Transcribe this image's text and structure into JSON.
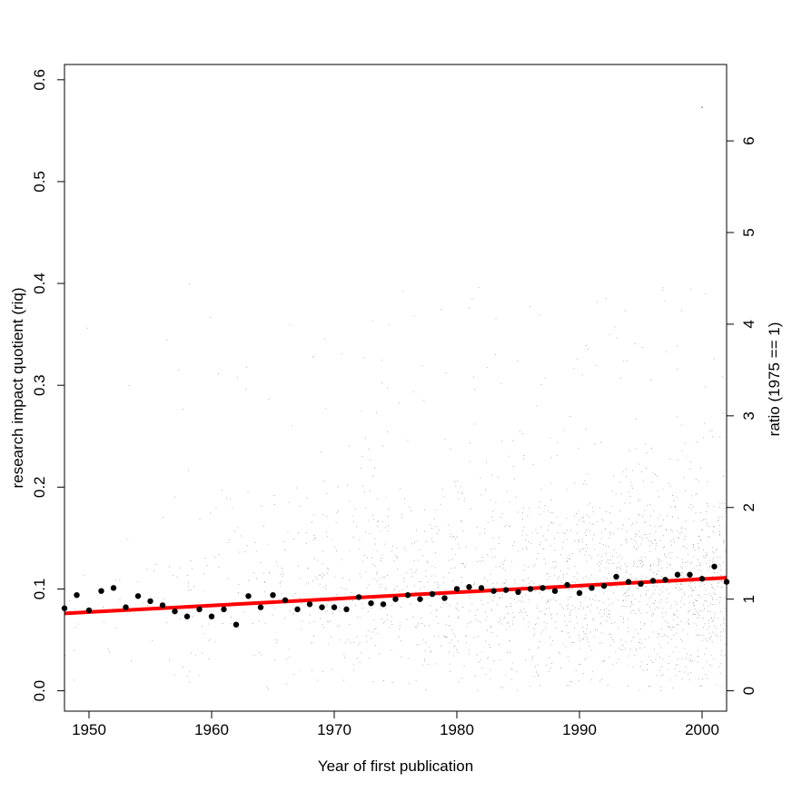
{
  "chart_data": {
    "type": "scatter",
    "title": "",
    "xlabel": "Year of first publication",
    "ylabel": "research impact quotient (riq)",
    "y2label": "ratio (1975 == 1)",
    "xlim": [
      1948,
      2002
    ],
    "ylim": [
      -0.02,
      0.615
    ],
    "y2_reference_riq": 0.09,
    "x_ticks": [
      1950,
      1960,
      1970,
      1980,
      1990,
      2000
    ],
    "y_ticks": [
      0.0,
      0.1,
      0.2,
      0.3,
      0.4,
      0.5,
      0.6
    ],
    "y_tick_labels": [
      "0.0",
      "0.1",
      "0.2",
      "0.3",
      "0.4",
      "0.5",
      "0.6"
    ],
    "y2_ticks": [
      0,
      1,
      2,
      3,
      4,
      5,
      6
    ],
    "y2_tick_labels": [
      "0",
      "1",
      "2",
      "3",
      "4",
      "5",
      "6"
    ],
    "grid": false,
    "series": [
      {
        "kind": "yearly_mean_points",
        "color": "#000000",
        "x": [
          1948,
          1949,
          1950,
          1951,
          1952,
          1953,
          1954,
          1955,
          1956,
          1957,
          1958,
          1959,
          1960,
          1961,
          1962,
          1963,
          1964,
          1965,
          1966,
          1967,
          1968,
          1969,
          1970,
          1971,
          1972,
          1973,
          1974,
          1975,
          1976,
          1977,
          1978,
          1979,
          1980,
          1981,
          1982,
          1983,
          1984,
          1985,
          1986,
          1987,
          1988,
          1989,
          1990,
          1991,
          1992,
          1993,
          1994,
          1995,
          1996,
          1997,
          1998,
          1999,
          2000,
          2001,
          2002
        ],
        "y": [
          0.081,
          0.094,
          0.079,
          0.098,
          0.101,
          0.082,
          0.093,
          0.088,
          0.084,
          0.078,
          0.073,
          0.08,
          0.073,
          0.08,
          0.065,
          0.093,
          0.082,
          0.094,
          0.089,
          0.08,
          0.085,
          0.082,
          0.082,
          0.08,
          0.092,
          0.086,
          0.085,
          0.09,
          0.094,
          0.09,
          0.095,
          0.091,
          0.1,
          0.102,
          0.101,
          0.098,
          0.099,
          0.097,
          0.1,
          0.101,
          0.098,
          0.104,
          0.096,
          0.101,
          0.103,
          0.112,
          0.107,
          0.105,
          0.108,
          0.109,
          0.114,
          0.114,
          0.11,
          0.122,
          0.107
        ]
      },
      {
        "kind": "linear_fit",
        "color": "#ff0000",
        "x": [
          1948,
          2002
        ],
        "y": [
          0.076,
          0.111
        ]
      },
      {
        "kind": "individual_authors_scatter",
        "color": "#555555",
        "n_points": 9000,
        "density_by_year": "sparse before 1960, increasing toward 2000",
        "typical_range": [
          0.0,
          0.3
        ],
        "max_observed": 0.573
      }
    ]
  }
}
